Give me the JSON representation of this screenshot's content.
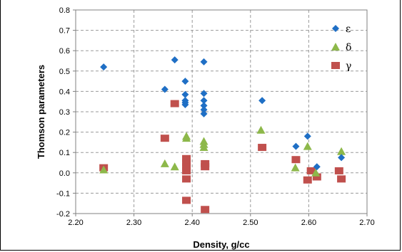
{
  "chart_data": {
    "type": "scatter",
    "xlabel": "Density, g/cc",
    "ylabel": "Thomson parameters",
    "xlim": [
      2.2,
      2.7
    ],
    "ylim": [
      -0.2,
      0.8
    ],
    "xticks": [
      "2.20",
      "2.30",
      "2.40",
      "2.50",
      "2.60",
      "2.70"
    ],
    "yticks": [
      "-0.2",
      "-0.1",
      "0.0",
      "0.1",
      "0.2",
      "0.3",
      "0.4",
      "0.5",
      "0.6",
      "0.7",
      "0.8"
    ],
    "grid": true,
    "legend_position": "top-right",
    "series": [
      {
        "name": "ε",
        "marker": "diamond",
        "color": "#1f6fc5",
        "points": [
          [
            2.248,
            0.52
          ],
          [
            2.353,
            0.41
          ],
          [
            2.37,
            0.555
          ],
          [
            2.388,
            0.45
          ],
          [
            2.388,
            0.385
          ],
          [
            2.388,
            0.355
          ],
          [
            2.388,
            0.345
          ],
          [
            2.388,
            0.335
          ],
          [
            2.42,
            0.545
          ],
          [
            2.42,
            0.39
          ],
          [
            2.42,
            0.355
          ],
          [
            2.42,
            0.33
          ],
          [
            2.42,
            0.31
          ],
          [
            2.42,
            0.29
          ],
          [
            2.52,
            0.355
          ],
          [
            2.578,
            0.13
          ],
          [
            2.598,
            0.18
          ],
          [
            2.614,
            0.03
          ],
          [
            2.656,
            0.075
          ]
        ]
      },
      {
        "name": "δ",
        "marker": "triangle",
        "color": "#8db84a",
        "points": [
          [
            2.248,
            0.015
          ],
          [
            2.353,
            0.045
          ],
          [
            2.37,
            0.03
          ],
          [
            2.39,
            0.17
          ],
          [
            2.39,
            0.18
          ],
          [
            2.42,
            0.155
          ],
          [
            2.42,
            0.14
          ],
          [
            2.42,
            0.125
          ],
          [
            2.518,
            0.21
          ],
          [
            2.577,
            0.025
          ],
          [
            2.598,
            0.13
          ],
          [
            2.612,
            0.0
          ],
          [
            2.656,
            0.105
          ]
        ]
      },
      {
        "name": "γ",
        "marker": "square",
        "color": "#c0504d",
        "points": [
          [
            2.248,
            0.025
          ],
          [
            2.353,
            0.17
          ],
          [
            2.37,
            0.34
          ],
          [
            2.39,
            0.07
          ],
          [
            2.39,
            0.05
          ],
          [
            2.39,
            0.03
          ],
          [
            2.39,
            0.01
          ],
          [
            2.39,
            -0.03
          ],
          [
            2.39,
            -0.135
          ],
          [
            2.422,
            0.045
          ],
          [
            2.422,
            0.03
          ],
          [
            2.422,
            -0.18
          ],
          [
            2.52,
            0.125
          ],
          [
            2.578,
            0.065
          ],
          [
            2.598,
            -0.035
          ],
          [
            2.604,
            0.01
          ],
          [
            2.614,
            -0.02
          ],
          [
            2.652,
            0.01
          ],
          [
            2.656,
            -0.03
          ]
        ]
      }
    ]
  }
}
